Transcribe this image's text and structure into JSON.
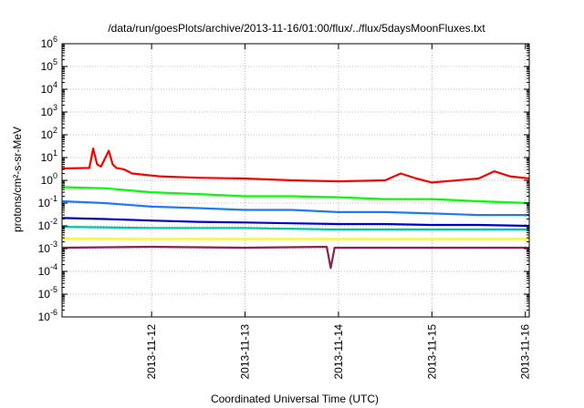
{
  "chart_data": {
    "type": "line",
    "title": "/data/run/goesPlots/archive/2013-11-16/01:00/flux/../flux/5daysMoonFluxes.txt",
    "xlabel": "Coordinated Universal Time (UTC)",
    "ylabel": "protons/cm²-s-sr-MeV",
    "y_scale": "log",
    "ylim": [
      1e-06,
      1000000.0
    ],
    "y_ticks": [
      {
        "base": "10",
        "exp": "-6",
        "value": 1e-06
      },
      {
        "base": "10",
        "exp": "-5",
        "value": 1e-05
      },
      {
        "base": "10",
        "exp": "-4",
        "value": 0.0001
      },
      {
        "base": "10",
        "exp": "-3",
        "value": 0.001
      },
      {
        "base": "10",
        "exp": "-2",
        "value": 0.01
      },
      {
        "base": "10",
        "exp": "-1",
        "value": 0.1
      },
      {
        "base": "10",
        "exp": "0",
        "value": 1
      },
      {
        "base": "10",
        "exp": "1",
        "value": 10
      },
      {
        "base": "10",
        "exp": "2",
        "value": 100
      },
      {
        "base": "10",
        "exp": "3",
        "value": 1000
      },
      {
        "base": "10",
        "exp": "4",
        "value": 10000
      },
      {
        "base": "10",
        "exp": "5",
        "value": 100000
      },
      {
        "base": "10",
        "exp": "6",
        "value": 1000000
      }
    ],
    "xlim": [
      "2013-11-11T01:00",
      "2013-11-16T01:00"
    ],
    "x_ticks": [
      {
        "label": "2013-11-12",
        "value": "2013-11-12T00:00"
      },
      {
        "label": "2013-11-13",
        "value": "2013-11-13T00:00"
      },
      {
        "label": "2013-11-14",
        "value": "2013-11-14T00:00"
      },
      {
        "label": "2013-11-15",
        "value": "2013-11-15T00:00"
      },
      {
        "label": "2013-11-16",
        "value": "2013-11-16T00:00"
      }
    ],
    "grid": true,
    "legend": "none",
    "series": [
      {
        "color": "#ff0000",
        "x": [
          "2013-11-11T01:00",
          "2013-11-11T08:00",
          "2013-11-11T09:00",
          "2013-11-11T10:00",
          "2013-11-11T11:00",
          "2013-11-11T13:00",
          "2013-11-11T14:00",
          "2013-11-11T15:00",
          "2013-11-11T17:00",
          "2013-11-11T19:00",
          "2013-11-12T02:00",
          "2013-11-12T12:00",
          "2013-11-13T00:00",
          "2013-11-13T12:00",
          "2013-11-14T00:00",
          "2013-11-14T12:00",
          "2013-11-14T16:00",
          "2013-11-14T20:00",
          "2013-11-15T00:00",
          "2013-11-15T12:00",
          "2013-11-15T16:00",
          "2013-11-15T20:00",
          "2013-11-16T01:00"
        ],
        "values": [
          3.3,
          3.5,
          25,
          5,
          4,
          20,
          5,
          3.5,
          3.0,
          2.0,
          1.5,
          1.3,
          1.2,
          1.0,
          0.9,
          1.0,
          2.0,
          1.2,
          0.8,
          1.2,
          2.5,
          1.5,
          1.2
        ]
      },
      {
        "color": "#00ff00",
        "x": [
          "2013-11-11T01:00",
          "2013-11-11T12:00",
          "2013-11-12T00:00",
          "2013-11-12T12:00",
          "2013-11-13T00:00",
          "2013-11-13T12:00",
          "2013-11-14T00:00",
          "2013-11-14T12:00",
          "2013-11-15T00:00",
          "2013-11-15T12:00",
          "2013-11-16T01:00"
        ],
        "values": [
          0.5,
          0.45,
          0.3,
          0.25,
          0.2,
          0.2,
          0.18,
          0.15,
          0.15,
          0.12,
          0.1
        ]
      },
      {
        "color": "#1e78ff",
        "x": [
          "2013-11-11T01:00",
          "2013-11-11T12:00",
          "2013-11-12T00:00",
          "2013-11-12T12:00",
          "2013-11-13T00:00",
          "2013-11-13T12:00",
          "2013-11-14T00:00",
          "2013-11-14T12:00",
          "2013-11-15T00:00",
          "2013-11-15T12:00",
          "2013-11-16T01:00"
        ],
        "values": [
          0.12,
          0.1,
          0.07,
          0.06,
          0.05,
          0.05,
          0.04,
          0.04,
          0.035,
          0.03,
          0.03
        ]
      },
      {
        "color": "#0000cc",
        "x": [
          "2013-11-11T01:00",
          "2013-11-11T12:00",
          "2013-11-12T00:00",
          "2013-11-12T12:00",
          "2013-11-13T00:00",
          "2013-11-13T12:00",
          "2013-11-14T00:00",
          "2013-11-14T12:00",
          "2013-11-15T00:00",
          "2013-11-15T12:00",
          "2013-11-16T01:00"
        ],
        "values": [
          0.022,
          0.02,
          0.017,
          0.015,
          0.014,
          0.013,
          0.012,
          0.012,
          0.011,
          0.011,
          0.01
        ]
      },
      {
        "color": "#00c8a0",
        "x": [
          "2013-11-11T01:00",
          "2013-11-12T00:00",
          "2013-11-13T00:00",
          "2013-11-13T22:00",
          "2013-11-14T00:00",
          "2013-11-15T00:00",
          "2013-11-16T01:00"
        ],
        "values": [
          0.009,
          0.008,
          0.008,
          0.007,
          0.007,
          0.007,
          0.007
        ]
      },
      {
        "color": "#ffff00",
        "x": [
          "2013-11-11T01:00",
          "2013-11-12T00:00",
          "2013-11-13T00:00",
          "2013-11-14T00:00",
          "2013-11-15T00:00",
          "2013-11-16T01:00"
        ],
        "values": [
          0.0028,
          0.0027,
          0.0027,
          0.0027,
          0.0027,
          0.0027
        ]
      },
      {
        "color": "#8b2252",
        "x": [
          "2013-11-11T01:00",
          "2013-11-12T00:00",
          "2013-11-13T00:00",
          "2013-11-13T21:00",
          "2013-11-13T22:00",
          "2013-11-13T23:00",
          "2013-11-14T00:00",
          "2013-11-15T00:00",
          "2013-11-16T01:00"
        ],
        "values": [
          0.0011,
          0.0012,
          0.0011,
          0.0012,
          0.00014,
          0.0011,
          0.0011,
          0.0011,
          0.0011
        ]
      }
    ]
  }
}
